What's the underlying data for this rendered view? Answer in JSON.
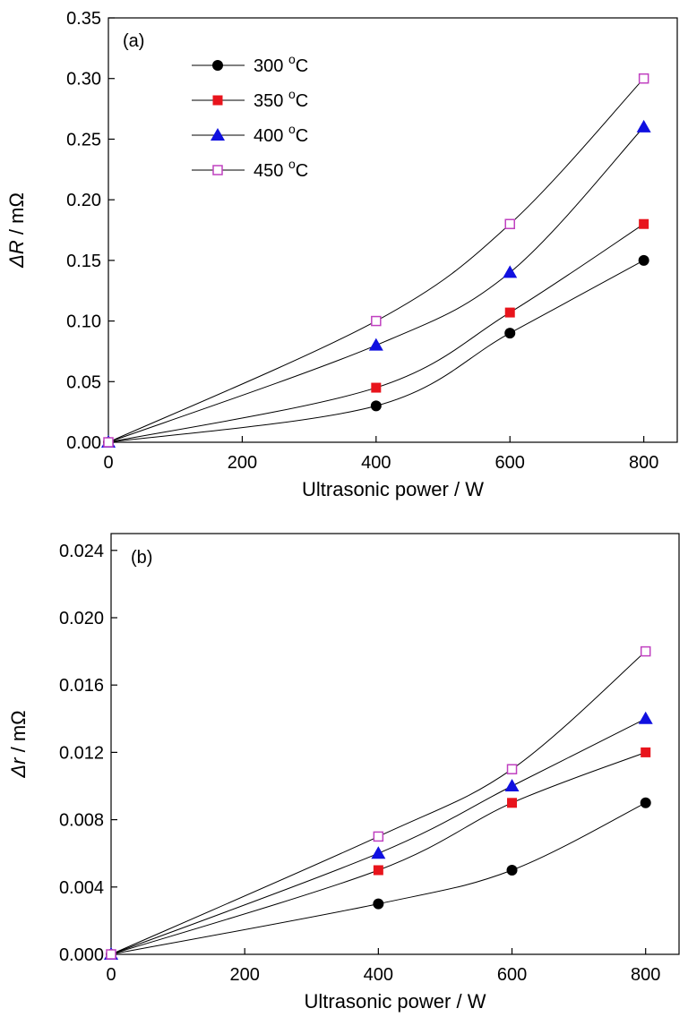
{
  "chart_data": [
    {
      "type": "scatter",
      "panel_label": "(a)",
      "xlabel": "Ultrasonic power / W",
      "ylabel_symbol": "ΔR",
      "ylabel_unit": " / mΩ",
      "xlim": [
        0,
        850
      ],
      "ylim": [
        0,
        0.35
      ],
      "xticks": [
        0,
        200,
        400,
        600,
        800
      ],
      "xtick_labels": [
        "0",
        "200",
        "400",
        "600",
        "800"
      ],
      "yticks": [
        0,
        0.05,
        0.1,
        0.15,
        0.2,
        0.25,
        0.3,
        0.35
      ],
      "ytick_labels": [
        "0.00",
        "0.05",
        "0.10",
        "0.15",
        "0.20",
        "0.25",
        "0.30",
        "0.35"
      ],
      "grid": false,
      "legend_position": "top-left",
      "x": [
        0,
        400,
        600,
        800
      ],
      "series": [
        {
          "name": "300 °C",
          "temp": "300",
          "unit": "C",
          "marker": "circle",
          "color": "#000000",
          "values": [
            0,
            0.03,
            0.09,
            0.15
          ]
        },
        {
          "name": "350 °C",
          "temp": "350",
          "unit": "C",
          "marker": "square",
          "color": "#e8141c",
          "values": [
            0,
            0.045,
            0.107,
            0.18
          ]
        },
        {
          "name": "400 °C",
          "temp": "400",
          "unit": "C",
          "marker": "triangle",
          "color": "#1010e0",
          "values": [
            0,
            0.08,
            0.14,
            0.26
          ]
        },
        {
          "name": "450 °C",
          "temp": "450",
          "unit": "C",
          "marker": "open-square",
          "color": "#c040c0",
          "values": [
            0,
            0.1,
            0.18,
            0.3
          ]
        }
      ]
    },
    {
      "type": "scatter",
      "panel_label": "(b)",
      "xlabel": "Ultrasonic power / W",
      "ylabel_symbol": "Δr",
      "ylabel_unit": " / mΩ",
      "xlim": [
        0,
        850
      ],
      "ylim": [
        0,
        0.025
      ],
      "xticks": [
        0,
        200,
        400,
        600,
        800
      ],
      "xtick_labels": [
        "0",
        "200",
        "400",
        "600",
        "800"
      ],
      "yticks": [
        0,
        0.004,
        0.008,
        0.012,
        0.016,
        0.02,
        0.024
      ],
      "ytick_labels": [
        "0.000",
        "0.004",
        "0.008",
        "0.012",
        "0.016",
        "0.020",
        "0.024"
      ],
      "grid": false,
      "x": [
        0,
        400,
        600,
        800
      ],
      "series": [
        {
          "temp": "300",
          "marker": "circle",
          "color": "#000000",
          "values": [
            0,
            0.003,
            0.005,
            0.009
          ]
        },
        {
          "temp": "350",
          "marker": "square",
          "color": "#e8141c",
          "values": [
            0,
            0.005,
            0.009,
            0.012
          ]
        },
        {
          "temp": "400",
          "marker": "triangle",
          "color": "#1010e0",
          "values": [
            0,
            0.006,
            0.01,
            0.014
          ]
        },
        {
          "temp": "450",
          "marker": "open-square",
          "color": "#c040c0",
          "values": [
            0,
            0.007,
            0.011,
            0.018
          ]
        }
      ]
    }
  ]
}
